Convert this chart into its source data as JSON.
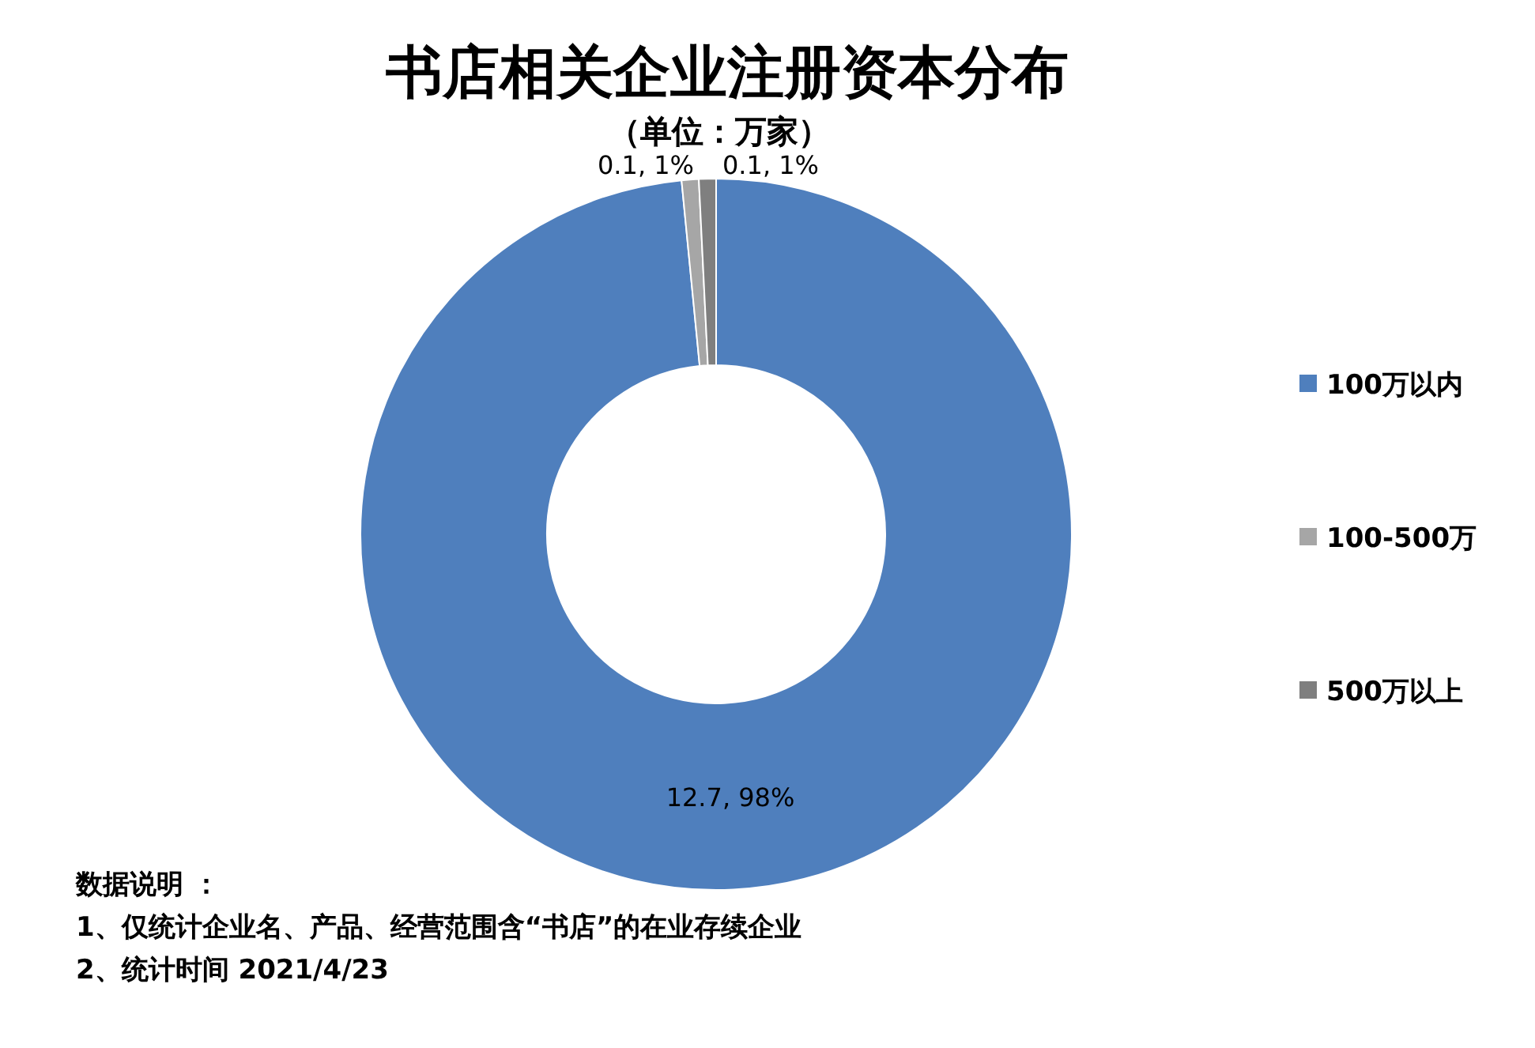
{
  "chart_data": {
    "type": "donut",
    "title": "书店相关企业注册资本分布",
    "subtitle": "（单位：万家）",
    "categories": [
      "100万以内",
      "100-500万",
      "500万以上"
    ],
    "values": [
      12.7,
      0.1,
      0.1
    ],
    "colors": [
      "#4f7fbd",
      "#a6a6a6",
      "#7f7f7f"
    ],
    "value_labels": [
      "12.7, 98%",
      "0.1, 1%",
      "0.1, 1%"
    ],
    "legend": "right",
    "annotations": [
      "数据说明 ：",
      "1、仅统计企业名、产品、经营范围含“书店”的在业存续企业",
      "2、统计时间 2021/4/23"
    ]
  }
}
